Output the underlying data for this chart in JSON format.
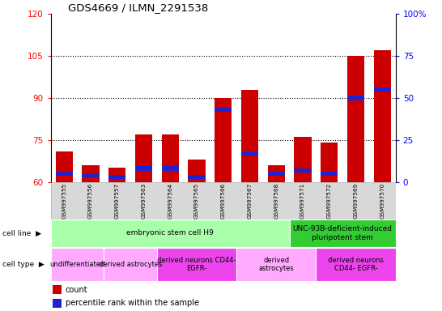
{
  "title": "GDS4669 / ILMN_2291538",
  "samples": [
    "GSM997555",
    "GSM997556",
    "GSM997557",
    "GSM997563",
    "GSM997564",
    "GSM997565",
    "GSM997566",
    "GSM997567",
    "GSM997568",
    "GSM997571",
    "GSM997572",
    "GSM997569",
    "GSM997570"
  ],
  "count_values": [
    71,
    66,
    65,
    77,
    77,
    68,
    90,
    93,
    66,
    76,
    74,
    105,
    107
  ],
  "percentile_values": [
    5,
    4,
    3,
    8,
    8,
    3,
    43,
    17,
    5,
    7,
    5,
    50,
    55
  ],
  "ylim_left": [
    60,
    120
  ],
  "ylim_right": [
    0,
    100
  ],
  "yticks_left": [
    60,
    75,
    90,
    105,
    120
  ],
  "yticks_right": [
    0,
    25,
    50,
    75,
    100
  ],
  "bar_color": "#cc0000",
  "percentile_color": "#2222cc",
  "cell_line_groups": [
    {
      "label": "embryonic stem cell H9",
      "start": 0,
      "end": 9,
      "color": "#aaffaa"
    },
    {
      "label": "UNC-93B-deficient-induced\npluripotent stem",
      "start": 9,
      "end": 13,
      "color": "#33cc33"
    }
  ],
  "cell_type_groups": [
    {
      "label": "undifferentiated",
      "start": 0,
      "end": 2,
      "color": "#ffaaff"
    },
    {
      "label": "derived astrocytes",
      "start": 2,
      "end": 4,
      "color": "#ffaaff"
    },
    {
      "label": "derived neurons CD44-\nEGFR-",
      "start": 4,
      "end": 7,
      "color": "#ee44ee"
    },
    {
      "label": "derived\nastrocytes",
      "start": 7,
      "end": 10,
      "color": "#ffaaff"
    },
    {
      "label": "derived neurons\nCD44- EGFR-",
      "start": 10,
      "end": 13,
      "color": "#ee44ee"
    }
  ],
  "legend_count_color": "#cc0000",
  "legend_percentile_color": "#2222cc"
}
